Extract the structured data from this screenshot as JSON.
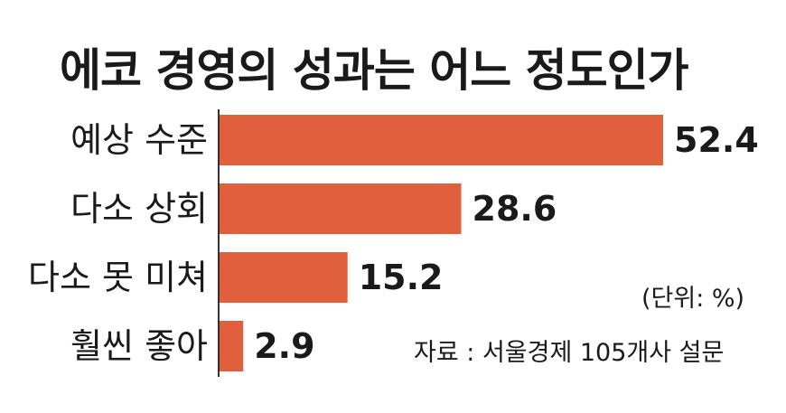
{
  "chart_data": {
    "type": "bar",
    "orientation": "horizontal",
    "title": "에코 경영의 성과는 어느 정도인가",
    "categories": [
      "예상 수준",
      "다소 상회",
      "다소 못 미쳐",
      "훨씬 좋아"
    ],
    "values": [
      52.4,
      28.6,
      15.2,
      2.9
    ],
    "value_labels": [
      "52.4",
      "28.6",
      "15.2",
      "2.9"
    ],
    "unit_note": "(단위: %)",
    "source": "자료 : 서울경제 105개사 설문",
    "xlim": [
      0,
      52.4
    ],
    "grid": false,
    "bar_color": "#e0603d",
    "axis_color": "#333333"
  }
}
